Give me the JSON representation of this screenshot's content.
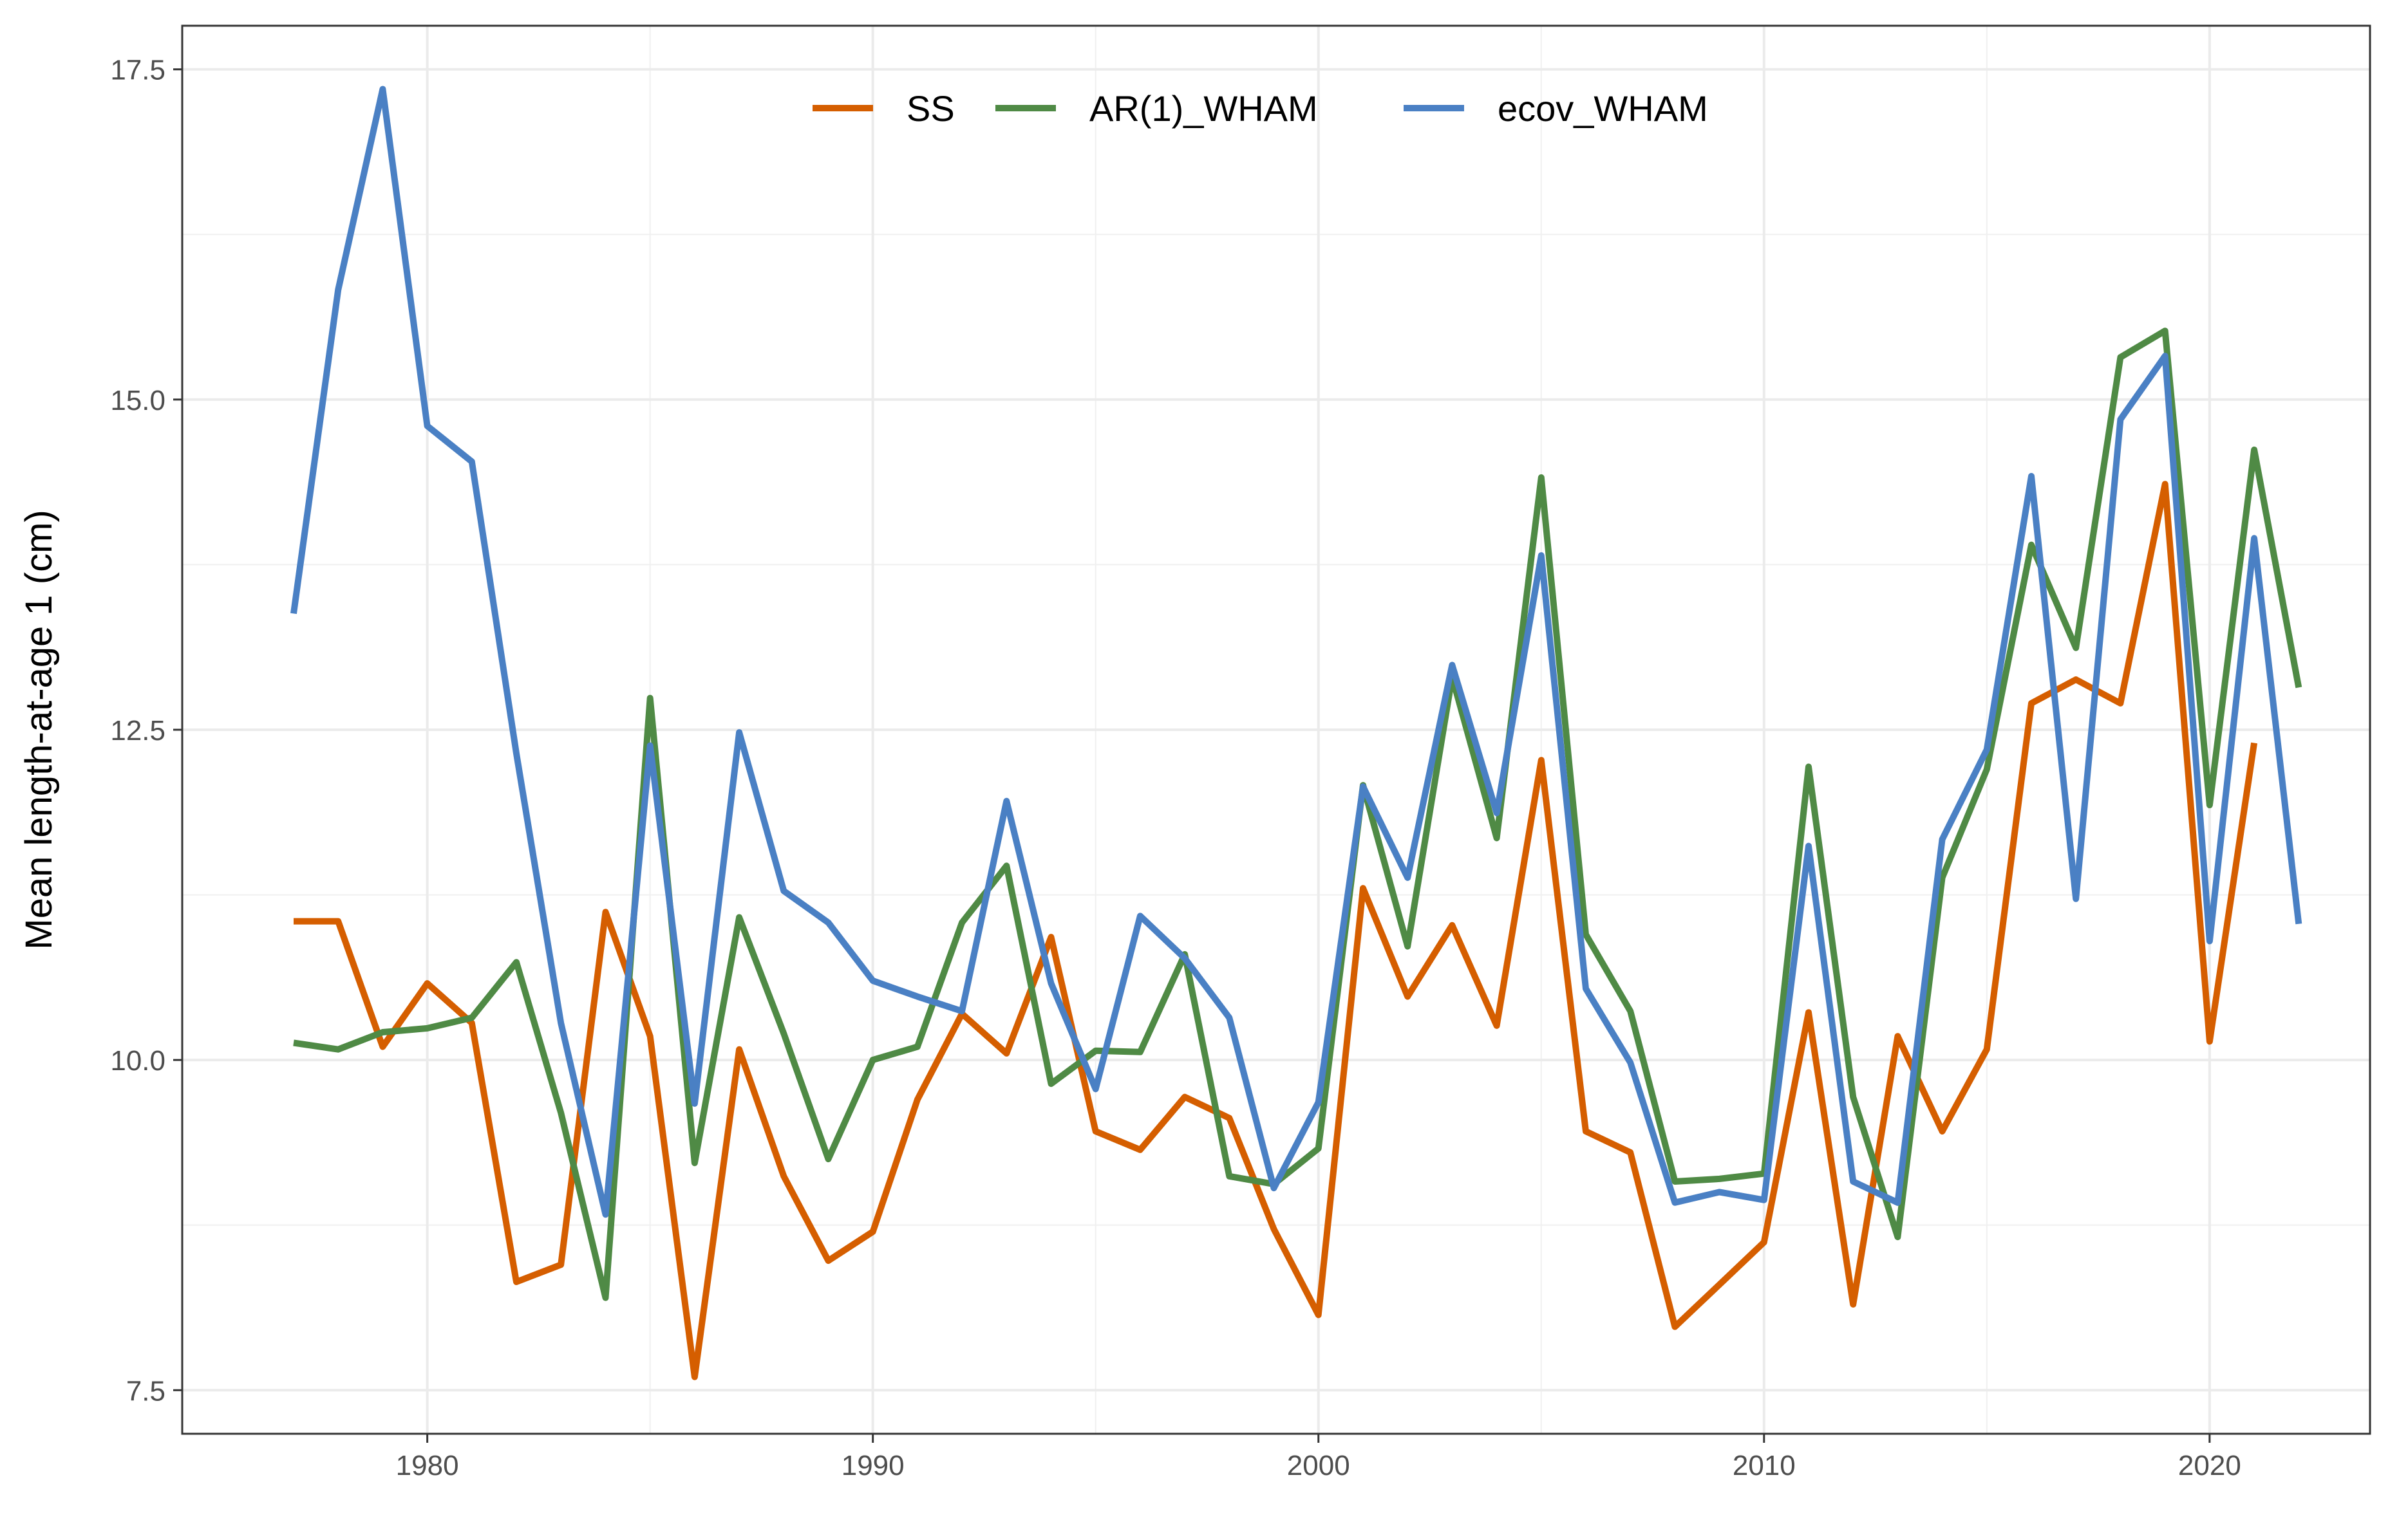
{
  "chart_data": {
    "type": "line",
    "title": "",
    "xlabel": "",
    "ylabel": "Mean length-at-age 1 (cm)",
    "xlim": [
      1974.5,
      2023.6
    ],
    "ylim": [
      7.17,
      17.83
    ],
    "x_ticks": [
      1980,
      1990,
      2000,
      2010,
      2020
    ],
    "y_ticks": [
      7.5,
      10.0,
      12.5,
      15.0,
      17.5
    ],
    "x_tick_labels": [
      "1980",
      "1990",
      "2000",
      "2010",
      "2020"
    ],
    "y_tick_labels": [
      "7.5",
      "10.0",
      "12.5",
      "15.0",
      "17.5"
    ],
    "grid": true,
    "legend_position": "top-center",
    "series": [
      {
        "name": "SS",
        "color": "#d55e00",
        "x": [
          1977,
          1978,
          1979,
          1980,
          1981,
          1982,
          1983,
          1984,
          1985,
          1986,
          1987,
          1988,
          1989,
          1990,
          1991,
          1992,
          1993,
          1994,
          1995,
          1996,
          1997,
          1998,
          1999,
          2000,
          2001,
          2002,
          2003,
          2004,
          2005,
          2006,
          2007,
          2008,
          2009,
          2010,
          2011,
          2012,
          2013,
          2014,
          2015,
          2016,
          2017,
          2018,
          2019,
          2020,
          2021
        ],
        "values": [
          11.05,
          11.05,
          10.1,
          10.58,
          10.28,
          8.32,
          8.45,
          11.12,
          10.18,
          7.6,
          10.08,
          9.12,
          8.48,
          8.7,
          9.7,
          10.35,
          10.05,
          10.93,
          9.46,
          9.32,
          9.72,
          9.56,
          8.72,
          8.07,
          11.3,
          10.48,
          11.02,
          10.26,
          12.27,
          9.46,
          9.3,
          7.98,
          8.3,
          8.62,
          10.36,
          8.15,
          10.18,
          9.46,
          10.08,
          12.7,
          12.88,
          12.7,
          14.36,
          10.14,
          12.4
        ]
      },
      {
        "name": "AR(1)_WHAM",
        "color": "#4f8a45",
        "x": [
          1977,
          1978,
          1979,
          1980,
          1981,
          1982,
          1983,
          1984,
          1985,
          1986,
          1987,
          1988,
          1989,
          1990,
          1991,
          1992,
          1993,
          1994,
          1995,
          1996,
          1997,
          1998,
          1999,
          2000,
          2001,
          2002,
          2003,
          2004,
          2005,
          2006,
          2007,
          2008,
          2009,
          2010,
          2011,
          2012,
          2013,
          2014,
          2015,
          2016,
          2017,
          2018,
          2019,
          2020,
          2021,
          2022
        ],
        "values": [
          10.13,
          10.08,
          10.21,
          10.24,
          10.32,
          10.74,
          9.6,
          8.2,
          12.74,
          9.22,
          11.08,
          10.2,
          9.25,
          10.0,
          10.1,
          11.04,
          11.47,
          9.82,
          10.07,
          10.06,
          10.8,
          9.12,
          9.06,
          9.33,
          12.08,
          10.86,
          12.9,
          11.68,
          14.41,
          10.95,
          10.37,
          9.08,
          9.1,
          9.14,
          12.22,
          9.72,
          8.66,
          11.38,
          12.2,
          13.9,
          13.12,
          15.32,
          15.52,
          11.93,
          14.62,
          12.82
        ]
      },
      {
        "name": "ecov_WHAM",
        "color": "#4a80c4",
        "x": [
          1977,
          1978,
          1979,
          1980,
          1981,
          1982,
          1983,
          1984,
          1985,
          1986,
          1987,
          1988,
          1989,
          1990,
          1991,
          1992,
          1993,
          1994,
          1995,
          1996,
          1997,
          1998,
          1999,
          2000,
          2001,
          2002,
          2003,
          2004,
          2005,
          2006,
          2007,
          2008,
          2009,
          2010,
          2011,
          2012,
          2013,
          2014,
          2015,
          2016,
          2017,
          2018,
          2019,
          2020,
          2021,
          2022
        ],
        "values": [
          13.38,
          15.83,
          17.35,
          14.8,
          14.53,
          12.32,
          10.28,
          8.83,
          12.38,
          9.67,
          12.48,
          11.28,
          11.04,
          10.6,
          10.48,
          10.37,
          11.96,
          10.58,
          9.78,
          11.09,
          10.77,
          10.32,
          9.03,
          9.68,
          12.07,
          11.38,
          12.99,
          11.87,
          13.82,
          10.54,
          9.98,
          8.92,
          9.0,
          8.94,
          11.62,
          9.08,
          8.92,
          11.67,
          12.35,
          14.42,
          11.22,
          14.85,
          15.33,
          10.9,
          13.95,
          11.03
        ]
      }
    ]
  }
}
